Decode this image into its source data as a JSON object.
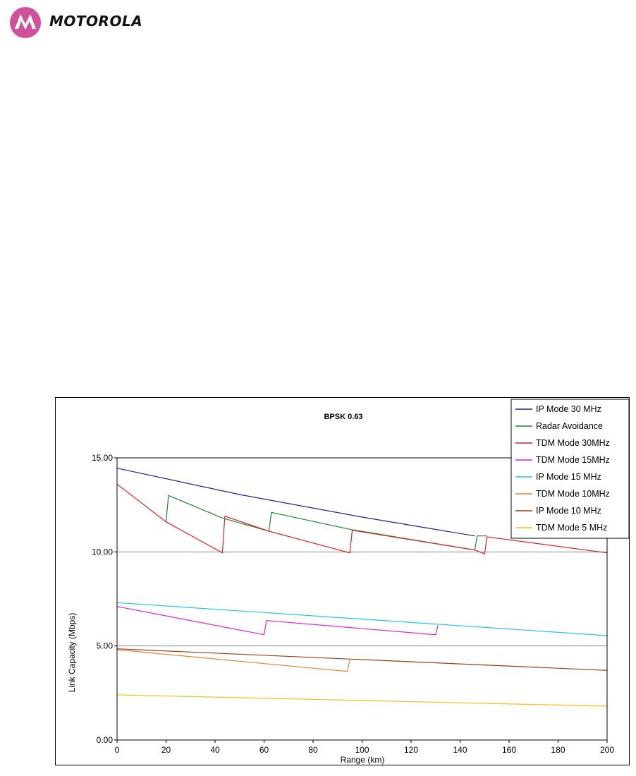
{
  "brand": {
    "name": "MOTOROLA",
    "logo_icon": "motorola-batwing-logo-icon",
    "logo_color": "#d0509a"
  },
  "chart_data": {
    "type": "line",
    "title": "BPSK 0.63",
    "xlabel": "Range (km)",
    "ylabel": "Link Capacity (Mbps)",
    "xlim": [
      0,
      200
    ],
    "ylim": [
      0,
      15
    ],
    "xticks": [
      "0",
      "20",
      "40",
      "60",
      "80",
      "100",
      "120",
      "140",
      "160",
      "180",
      "200"
    ],
    "yticks": [
      "0.00",
      "5.00",
      "10.00",
      "15.00"
    ],
    "grid": "horizontal",
    "legend_position": "top-right",
    "series": [
      {
        "name": "IP Mode 30 MHz",
        "color": "#1f1f9f",
        "x": [
          0,
          50,
          100,
          146
        ],
        "y": [
          14.45,
          13.05,
          11.85,
          10.85
        ]
      },
      {
        "name": "Radar Avoidance",
        "color": "#1a8a2a",
        "x": [
          20,
          21,
          43,
          62,
          63,
          95,
          146,
          147,
          151
        ],
        "y": [
          11.6,
          13.0,
          11.8,
          11.1,
          12.1,
          11.2,
          10.1,
          10.85,
          10.85
        ]
      },
      {
        "name": "TDM Mode 30MHz",
        "color": "#e02020",
        "x": [
          0,
          20,
          43,
          44,
          62,
          95,
          96,
          146,
          150,
          151,
          200
        ],
        "y": [
          13.6,
          11.6,
          9.95,
          11.9,
          11.1,
          9.95,
          11.15,
          10.1,
          9.9,
          10.8,
          9.95
        ]
      },
      {
        "name": "TDM Mode 15MHz",
        "color": "#e020e0",
        "x": [
          0,
          60,
          61,
          130,
          131
        ],
        "y": [
          7.1,
          5.6,
          6.35,
          5.6,
          6.1
        ]
      },
      {
        "name": "IP Mode 15 MHz",
        "color": "#20c8e8",
        "x": [
          0,
          200
        ],
        "y": [
          7.3,
          5.55
        ]
      },
      {
        "name": "TDM Mode 10MHz",
        "color": "#f08030",
        "x": [
          0,
          94,
          95
        ],
        "y": [
          4.8,
          3.65,
          4.25
        ]
      },
      {
        "name": "IP Mode 10 MHz",
        "color": "#a03a1a",
        "x": [
          0,
          200
        ],
        "y": [
          4.85,
          3.7
        ]
      },
      {
        "name": "TDM Mode 5 MHz",
        "color": "#f0c020",
        "x": [
          0,
          200
        ],
        "y": [
          2.4,
          1.8
        ]
      }
    ]
  }
}
